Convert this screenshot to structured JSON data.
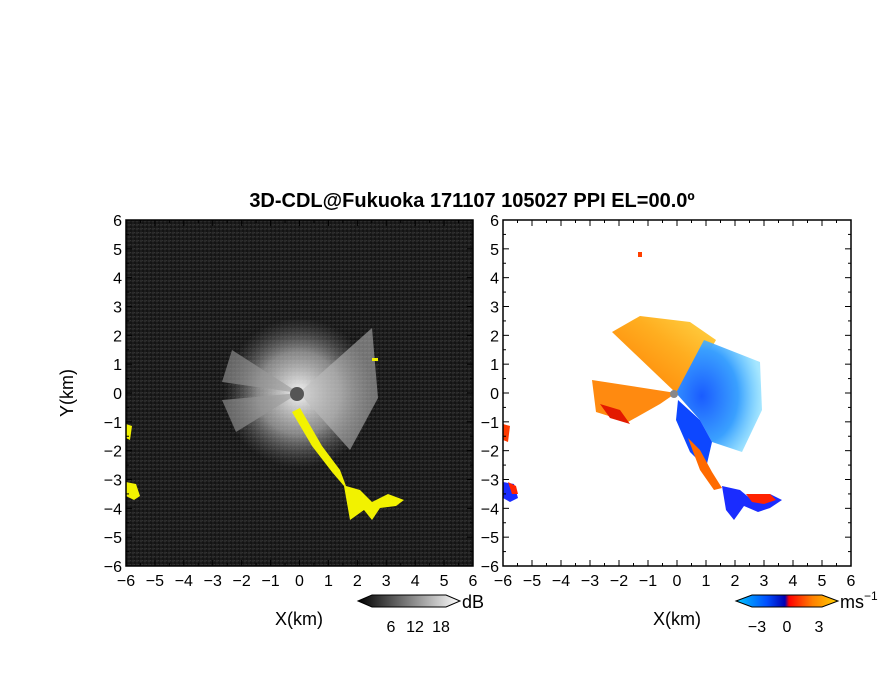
{
  "figure": {
    "title": "3D-CDL@Fukuoka 171107 105027 PPI EL=00.0º"
  },
  "chart_data": [
    {
      "type": "heatmap",
      "panel": "left",
      "xlabel": "X(km)",
      "ylabel": "Y(km)",
      "xlim": [
        -6,
        6
      ],
      "ylim": [
        -6,
        6
      ],
      "x_ticks": [
        -6,
        -5,
        -4,
        -3,
        -2,
        -1,
        0,
        1,
        2,
        3,
        4,
        5,
        6
      ],
      "y_ticks": [
        -6,
        -5,
        -4,
        -3,
        -2,
        -1,
        0,
        1,
        2,
        3,
        4,
        5,
        6
      ],
      "background_color": "#1e1e1e",
      "highlight_color": "#f2f200",
      "colorbar": {
        "unit": "dB",
        "ticks": [
          6,
          12,
          18
        ],
        "colors": [
          "#000000",
          "#ffffff"
        ]
      }
    },
    {
      "type": "heatmap",
      "panel": "right",
      "xlabel": "X(km)",
      "xlim": [
        -6,
        6
      ],
      "ylim": [
        -6,
        6
      ],
      "x_ticks": [
        -6,
        -5,
        -4,
        -3,
        -2,
        -1,
        0,
        1,
        2,
        3,
        4,
        5,
        6
      ],
      "y_ticks": [
        -6,
        -5,
        -4,
        -3,
        -2,
        -1,
        0,
        1,
        2,
        3,
        4,
        5,
        6
      ],
      "colorbar": {
        "unit": "ms",
        "unit_exponent": "−1",
        "ticks": [
          -3,
          0,
          3
        ],
        "colors": [
          "#00c8ff",
          "#0050ff",
          "#0000b4",
          "#ff0000",
          "#ff8000",
          "#ffd000"
        ]
      }
    }
  ]
}
